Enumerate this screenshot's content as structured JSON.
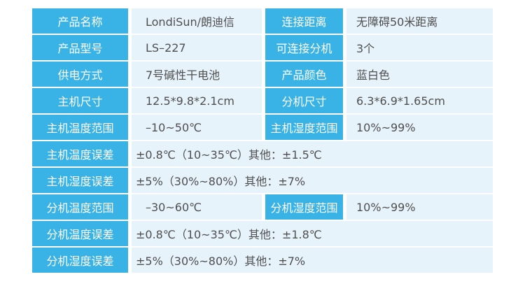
{
  "rows": [
    {
      "l1": "产品名称",
      "v1": "LondiSun/朗迪信",
      "l2": "连接距离",
      "v2": "无障碍50米距离"
    },
    {
      "l1": "产品型号",
      "v1": "LS–227",
      "l2": "可连接分机",
      "v2": "3个"
    },
    {
      "l1": "供电方式",
      "v1": "7号碱性干电池",
      "l2": "产品颜色",
      "v2": "蓝白色"
    },
    {
      "l1": "主机尺寸",
      "v1": "12.5*9.8*2.1cm",
      "l2": "分机尺寸",
      "v2": "6.3*6.9*1.65cm"
    },
    {
      "l1": "主机温度范围",
      "v1": "–10~50℃",
      "l2": "主机湿度范围",
      "v2": "10%~99%"
    },
    {
      "l1": "主机温度误差",
      "v1": "±0.8℃（10~35℃）其他：±1.5℃"
    },
    {
      "l1": "主机湿度误差",
      "v1": "±5%（30%~80%）其他：±7%"
    },
    {
      "l1": "分机温度范围",
      "v1": "–30~60℃",
      "l2": "分机湿度范围",
      "v2": "10%~99%"
    },
    {
      "l1": "分机温度误差",
      "v1": "±0.8℃（10~35℃）其他：±1.8℃"
    },
    {
      "l1": "分机湿度误差",
      "v1": "±5%（30%~80%）其他：±7%"
    }
  ],
  "colors": {
    "label_bg": "#39b3e5",
    "value_bg": "#e7f3fb",
    "label_text": "#ffffff",
    "value_text": "#4f4f4f"
  }
}
